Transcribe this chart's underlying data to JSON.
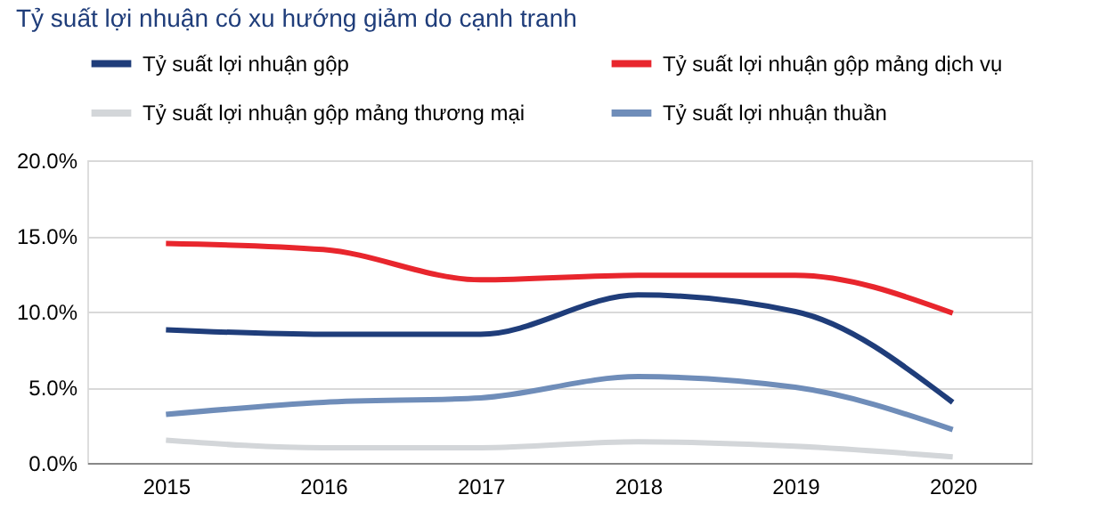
{
  "chart_data": {
    "type": "line",
    "title": "Tỷ suất lợi nhuận có xu hướng giảm do cạnh tranh",
    "categories": [
      "2015",
      "2016",
      "2017",
      "2018",
      "2019",
      "2020"
    ],
    "series": [
      {
        "name": "Tỷ suất lợi nhuận gộp",
        "color": "#1f3d7a",
        "values": [
          8.8,
          8.5,
          8.5,
          11.1,
          10.0,
          4.0
        ]
      },
      {
        "name": "Tỷ suất lợi nhuận gộp mảng dịch vụ",
        "color": "#e8262d",
        "values": [
          14.5,
          14.1,
          12.1,
          12.4,
          12.4,
          9.9
        ]
      },
      {
        "name": "Tỷ suất lợi nhuận gộp mảng thương mại",
        "color": "#d3d6d9",
        "values": [
          1.5,
          1.0,
          1.0,
          1.4,
          1.1,
          0.4
        ]
      },
      {
        "name": "Tỷ suất lợi nhuận thuần",
        "color": "#6f8db9",
        "values": [
          3.2,
          4.0,
          4.3,
          5.7,
          5.0,
          2.2
        ]
      }
    ],
    "ylim": [
      0,
      20
    ],
    "yticks": [
      {
        "value": 0,
        "label": "0.0%"
      },
      {
        "value": 5,
        "label": "5.0%"
      },
      {
        "value": 10,
        "label": "10.0%"
      },
      {
        "value": 15,
        "label": "15.0%"
      },
      {
        "value": 20,
        "label": "20.0%"
      }
    ],
    "grid": "y",
    "legend": "top",
    "marker": "none",
    "line_style": "solid"
  }
}
